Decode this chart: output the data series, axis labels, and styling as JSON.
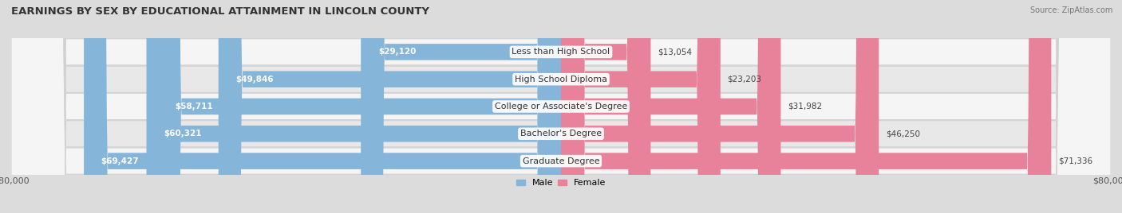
{
  "title": "EARNINGS BY SEX BY EDUCATIONAL ATTAINMENT IN LINCOLN COUNTY",
  "source": "Source: ZipAtlas.com",
  "categories": [
    "Less than High School",
    "High School Diploma",
    "College or Associate's Degree",
    "Bachelor's Degree",
    "Graduate Degree"
  ],
  "male_values": [
    29120,
    49846,
    58711,
    60321,
    69427
  ],
  "female_values": [
    13054,
    23203,
    31982,
    46250,
    71336
  ],
  "male_color": "#85b5d8",
  "female_color": "#e8829a",
  "row_bg_light": "#f0f0f0",
  "row_bg_dark": "#e2e2e2",
  "bar_bg_color": "#d8d8d8",
  "max_value": 80000,
  "title_fontsize": 9.5,
  "label_fontsize": 8,
  "value_fontsize": 7.5,
  "bar_height": 0.6,
  "figsize": [
    14.06,
    2.68
  ],
  "dpi": 100
}
